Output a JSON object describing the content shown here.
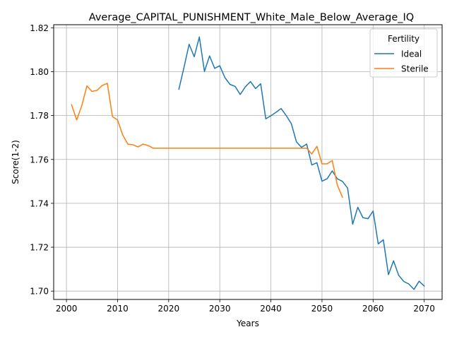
{
  "chart_data": {
    "type": "line",
    "title": "Average_CAPITAL_PUNISHMENT_White_Male_Below_Average_IQ",
    "xlabel": "Years",
    "ylabel": "Score(1-2)",
    "xlim": [
      1997.5,
      2073.5
    ],
    "ylim": [
      1.6962,
      1.8214
    ],
    "x_ticks": [
      2000,
      2010,
      2020,
      2030,
      2040,
      2050,
      2060,
      2070
    ],
    "y_ticks": [
      1.7,
      1.72,
      1.74,
      1.76,
      1.78,
      1.8,
      1.82
    ],
    "y_tick_labels": [
      "1.70",
      "1.72",
      "1.74",
      "1.76",
      "1.78",
      "1.80",
      "1.82"
    ],
    "grid": true,
    "legend": {
      "title": "Fertility",
      "placement": "top-right"
    },
    "series": [
      {
        "name": "Ideal",
        "color": "#1f77b4",
        "x": [
          2022,
          2023,
          2024,
          2025,
          2026,
          2027,
          2028,
          2029,
          2030,
          2031,
          2032,
          2033,
          2034,
          2035,
          2036,
          2037,
          2038,
          2039,
          2040,
          2041,
          2042,
          2043,
          2044,
          2045,
          2046,
          2047,
          2048,
          2049,
          2050,
          2051,
          2052,
          2053,
          2054,
          2055,
          2056,
          2057,
          2058,
          2059,
          2060,
          2061,
          2062,
          2063,
          2064,
          2065,
          2066,
          2067,
          2068,
          2069,
          2070
        ],
        "y": [
          1.792,
          1.802,
          1.8125,
          1.8068,
          1.8158,
          1.8001,
          1.8072,
          1.8015,
          1.8027,
          1.7973,
          1.7942,
          1.7933,
          1.7896,
          1.7931,
          1.7955,
          1.7923,
          1.7945,
          1.7785,
          1.7799,
          1.7815,
          1.7832,
          1.78,
          1.7763,
          1.768,
          1.7655,
          1.767,
          1.7575,
          1.7585,
          1.7501,
          1.7512,
          1.7548,
          1.7512,
          1.75,
          1.747,
          1.7305,
          1.7382,
          1.7335,
          1.733,
          1.7365,
          1.7215,
          1.7234,
          1.7075,
          1.7138,
          1.7072,
          1.7044,
          1.7032,
          1.7008,
          1.7045,
          1.7023
        ]
      },
      {
        "name": "Sterile",
        "color": "#ff7f0e",
        "x": [
          2001,
          2002,
          2003,
          2004,
          2005,
          2006,
          2007,
          2008,
          2009,
          2010,
          2011,
          2012,
          2013,
          2014,
          2015,
          2016,
          2017,
          2018,
          2019,
          2020,
          2021,
          2022,
          2023,
          2024,
          2025,
          2026,
          2027,
          2028,
          2029,
          2030,
          2031,
          2032,
          2033,
          2034,
          2035,
          2036,
          2037,
          2038,
          2039,
          2040,
          2041,
          2042,
          2043,
          2044,
          2045,
          2046,
          2047,
          2048,
          2049,
          2050,
          2051,
          2052,
          2053,
          2054
        ],
        "y": [
          1.785,
          1.778,
          1.7845,
          1.7935,
          1.791,
          1.7915,
          1.7937,
          1.7947,
          1.7795,
          1.778,
          1.7712,
          1.767,
          1.7667,
          1.7657,
          1.767,
          1.7663,
          1.7651,
          1.7651,
          1.7651,
          1.7651,
          1.7651,
          1.7651,
          1.7651,
          1.7651,
          1.7651,
          1.7651,
          1.7651,
          1.7651,
          1.7651,
          1.7651,
          1.7651,
          1.7651,
          1.7651,
          1.7651,
          1.7651,
          1.7651,
          1.7651,
          1.7651,
          1.7651,
          1.7651,
          1.7651,
          1.7651,
          1.7651,
          1.7651,
          1.7651,
          1.7651,
          1.7651,
          1.7625,
          1.766,
          1.758,
          1.758,
          1.7595,
          1.7483,
          1.7428
        ]
      }
    ]
  }
}
